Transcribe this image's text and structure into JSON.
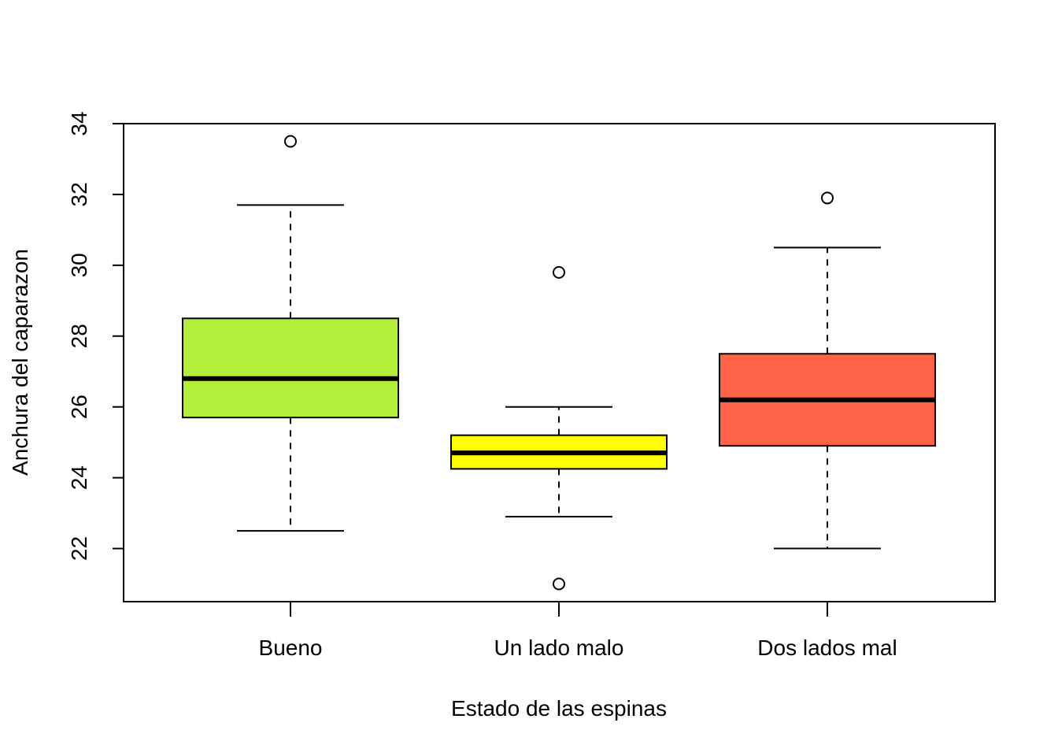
{
  "chart_data": {
    "type": "boxplot",
    "title": "",
    "xlabel": "Estado de las espinas",
    "ylabel": "Anchura del caparazon",
    "categories": [
      "Bueno",
      "Un lado malo",
      "Dos lados mal"
    ],
    "ylim": [
      20.5,
      34
    ],
    "yticks": [
      22,
      24,
      26,
      28,
      30,
      32,
      34
    ],
    "ytick_labels": [
      "22",
      "24",
      "26",
      "28",
      "30",
      "32",
      "34"
    ],
    "boxes": [
      {
        "category": "Bueno",
        "whisker_low": 22.5,
        "q1": 25.7,
        "median": 26.8,
        "q3": 28.5,
        "whisker_high": 31.7,
        "outliers": [
          33.5
        ],
        "color": "#b3ee3a"
      },
      {
        "category": "Un lado malo",
        "whisker_low": 22.9,
        "q1": 24.25,
        "median": 24.7,
        "q3": 25.2,
        "whisker_high": 26.0,
        "outliers": [
          29.8,
          21.0
        ],
        "color": "#ffff00"
      },
      {
        "category": "Dos lados mal",
        "whisker_low": 22.0,
        "q1": 24.9,
        "median": 26.2,
        "q3": 27.5,
        "whisker_high": 30.5,
        "outliers": [
          31.9
        ],
        "color": "#ff6347"
      }
    ],
    "grid": false,
    "legend": "none"
  }
}
